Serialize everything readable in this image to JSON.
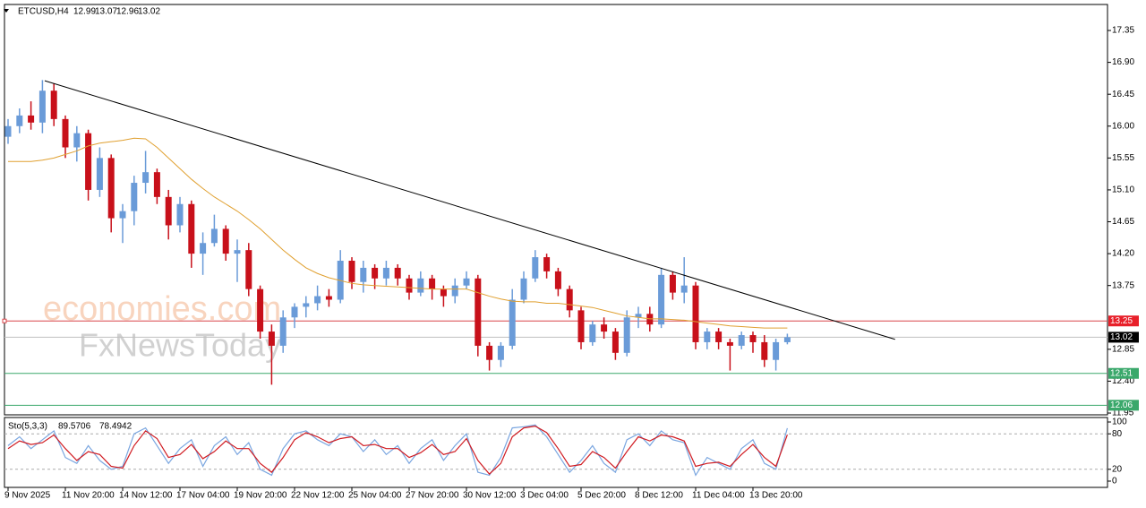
{
  "chart_data": [
    {
      "type": "candlestick",
      "title": "ETCUSD,H4",
      "last_ohlc": [
        12.99,
        13.07,
        12.96,
        13.02
      ],
      "categories": [
        "9 Nov 2025",
        null,
        null,
        null,
        null,
        "11 Nov 20:00",
        null,
        null,
        null,
        null,
        "14 Nov 12:00",
        null,
        null,
        null,
        null,
        "17 Nov 04:00",
        null,
        null,
        null,
        null,
        "19 Nov 20:00",
        null,
        null,
        null,
        null,
        "22 Nov 12:00",
        null,
        null,
        null,
        null,
        "25 Nov 04:00",
        null,
        null,
        null,
        null,
        "27 Nov 20:00",
        null,
        null,
        null,
        null,
        "30 Nov 12:00",
        null,
        null,
        null,
        null,
        "3 Dec 04:00",
        null,
        null,
        null,
        null,
        "5 Dec 20:00",
        null,
        null,
        null,
        null,
        "8 Dec 12:00",
        null,
        null,
        null,
        null,
        "11 Dec 04:00",
        null,
        null,
        null,
        null,
        "13 Dec 20:00",
        null,
        null,
        null
      ],
      "open": [
        15.85,
        16.0,
        16.15,
        16.05,
        16.5,
        16.1,
        15.7,
        15.9,
        15.1,
        15.55,
        14.7,
        14.8,
        15.2,
        15.35,
        15.0,
        14.6,
        14.9,
        14.2,
        14.35,
        14.55,
        14.2,
        14.25,
        13.7,
        13.1,
        12.9,
        13.3,
        13.45,
        13.5,
        13.6,
        13.55,
        14.1,
        13.8,
        14.0,
        13.85,
        14.0,
        13.85,
        13.65,
        13.85,
        13.7,
        13.6,
        13.75,
        13.85,
        12.9,
        12.7,
        12.9,
        13.55,
        13.85,
        14.15,
        13.95,
        13.7,
        13.4,
        12.95,
        13.2,
        13.1,
        12.8,
        13.3,
        13.35,
        13.2,
        13.9,
        13.65,
        13.75,
        12.95,
        13.1,
        12.95,
        12.9,
        13.05,
        12.95,
        12.7,
        12.95
      ],
      "high": [
        16.1,
        16.25,
        16.35,
        16.65,
        16.6,
        16.15,
        16.0,
        15.95,
        15.7,
        15.6,
        14.9,
        15.3,
        15.65,
        15.4,
        15.1,
        15.0,
        14.95,
        14.5,
        14.75,
        14.6,
        14.4,
        14.35,
        13.75,
        13.2,
        13.4,
        13.5,
        13.6,
        13.75,
        13.7,
        14.25,
        14.15,
        14.1,
        14.05,
        14.1,
        14.05,
        13.9,
        13.95,
        13.9,
        13.75,
        13.85,
        13.95,
        13.9,
        12.95,
        12.95,
        13.7,
        13.95,
        14.25,
        14.2,
        14.0,
        13.75,
        13.45,
        13.25,
        13.3,
        13.15,
        13.4,
        13.45,
        13.45,
        14.0,
        13.95,
        14.15,
        13.8,
        13.15,
        13.15,
        13.0,
        13.1,
        13.1,
        13.05,
        13.0,
        13.07
      ],
      "low": [
        15.75,
        15.9,
        15.95,
        15.9,
        16.0,
        15.55,
        15.5,
        14.95,
        15.0,
        14.5,
        14.35,
        14.6,
        15.05,
        14.9,
        14.4,
        14.5,
        14.0,
        13.9,
        14.3,
        14.1,
        13.8,
        13.6,
        13.0,
        12.35,
        12.8,
        13.15,
        13.3,
        13.4,
        13.45,
        13.5,
        13.7,
        13.65,
        13.7,
        13.75,
        13.75,
        13.55,
        13.6,
        13.55,
        13.45,
        13.5,
        13.7,
        12.75,
        12.55,
        12.6,
        12.85,
        13.5,
        13.8,
        13.85,
        13.6,
        13.3,
        12.85,
        12.9,
        13.0,
        12.7,
        12.75,
        13.15,
        13.1,
        13.15,
        13.55,
        13.5,
        12.85,
        12.85,
        12.85,
        12.55,
        12.85,
        12.8,
        12.6,
        12.55,
        12.92
      ],
      "close": [
        16.0,
        16.15,
        16.05,
        16.5,
        16.1,
        15.7,
        15.9,
        15.1,
        15.55,
        14.7,
        14.8,
        15.2,
        15.35,
        15.0,
        14.6,
        14.9,
        14.2,
        14.35,
        14.55,
        14.2,
        14.25,
        13.7,
        13.1,
        12.9,
        13.3,
        13.45,
        13.5,
        13.6,
        13.55,
        14.1,
        13.8,
        14.0,
        13.85,
        14.0,
        13.85,
        13.65,
        13.85,
        13.7,
        13.6,
        13.75,
        13.85,
        12.9,
        12.7,
        12.9,
        13.55,
        13.85,
        14.15,
        13.95,
        13.7,
        13.4,
        12.95,
        13.2,
        13.1,
        12.8,
        13.3,
        13.35,
        13.2,
        13.9,
        13.65,
        13.75,
        12.95,
        13.1,
        12.95,
        12.9,
        13.05,
        12.95,
        12.7,
        12.95,
        13.02
      ],
      "up_color": "#6a9bd8",
      "down_color": "#c8101a",
      "ma": {
        "color": "#e0a030",
        "values": [
          15.5,
          15.5,
          15.5,
          15.52,
          15.55,
          15.6,
          15.65,
          15.72,
          15.76,
          15.78,
          15.8,
          15.83,
          15.82,
          15.7,
          15.55,
          15.4,
          15.25,
          15.12,
          15.0,
          14.9,
          14.8,
          14.68,
          14.55,
          14.4,
          14.25,
          14.12,
          14.0,
          13.92,
          13.86,
          13.82,
          13.78,
          13.76,
          13.75,
          13.74,
          13.73,
          13.72,
          13.71,
          13.7,
          13.7,
          13.7,
          13.7,
          13.65,
          13.6,
          13.56,
          13.53,
          13.52,
          13.52,
          13.5,
          13.5,
          13.48,
          13.46,
          13.44,
          13.4,
          13.36,
          13.32,
          13.3,
          13.28,
          13.28,
          13.27,
          13.26,
          13.24,
          13.22,
          13.2,
          13.18,
          13.17,
          13.16,
          13.15,
          13.15,
          13.15
        ]
      },
      "trendline": {
        "color": "#000000",
        "x": [
          3.2,
          77.4
        ],
        "y": [
          16.64,
          12.99
        ]
      },
      "hlines": [
        {
          "value": 13.25,
          "color": "#d8454a",
          "label_color": "#e8202a"
        },
        {
          "value": 13.02,
          "color": "#c0c0c0",
          "label_color": "#000000"
        },
        {
          "value": 12.51,
          "color": "#3aa86b",
          "label_color": "#3aa86b"
        },
        {
          "value": 12.06,
          "color": "#3aa86b",
          "label_color": "#3aa86b"
        }
      ],
      "ylim": [
        11.925,
        17.717
      ],
      "yticks": [
        17.35,
        {
          "value": 16.9,
          "label": "16.90"
        },
        16.45,
        {
          "value": 16.0,
          "label": "16.00"
        },
        15.55,
        {
          "value": 15.1,
          "label": "15.10"
        },
        14.65,
        {
          "value": 14.2,
          "label": "14.20"
        },
        13.75,
        12.85,
        {
          "value": 12.4,
          "label": "12.40"
        },
        11.95
      ],
      "watermarks": [
        "economies.com",
        "FxNewsToday"
      ]
    },
    {
      "type": "line",
      "title": "Sto(5,3,3)",
      "ylim": [
        -10.6,
        107.6
      ],
      "yticks": [
        100,
        80,
        20,
        0
      ],
      "series": [
        {
          "name": "Main",
          "color": "#7aa6e0",
          "values": [
            60,
            75,
            55,
            70,
            85,
            40,
            30,
            60,
            35,
            20,
            25,
            80,
            90,
            60,
            30,
            55,
            70,
            25,
            60,
            75,
            45,
            65,
            20,
            10,
            55,
            80,
            85,
            70,
            60,
            80,
            75,
            50,
            70,
            45,
            60,
            30,
            55,
            70,
            35,
            60,
            80,
            15,
            10,
            40,
            90,
            92,
            95,
            75,
            45,
            15,
            35,
            60,
            30,
            15,
            70,
            80,
            60,
            85,
            70,
            65,
            10,
            40,
            30,
            20,
            55,
            70,
            30,
            20,
            89.5706
          ]
        },
        {
          "name": "Signal",
          "color": "#d01a20",
          "values": [
            55,
            68,
            62,
            65,
            78,
            55,
            35,
            50,
            45,
            25,
            22,
            60,
            85,
            72,
            40,
            45,
            62,
            38,
            50,
            68,
            55,
            55,
            30,
            15,
            40,
            70,
            82,
            75,
            65,
            72,
            75,
            60,
            62,
            55,
            55,
            40,
            48,
            62,
            45,
            50,
            72,
            35,
            12,
            30,
            75,
            90,
            93,
            82,
            55,
            25,
            28,
            50,
            40,
            22,
            50,
            75,
            68,
            78,
            75,
            68,
            25,
            30,
            32,
            25,
            45,
            62,
            40,
            25,
            78.4942
          ]
        }
      ]
    }
  ]
}
